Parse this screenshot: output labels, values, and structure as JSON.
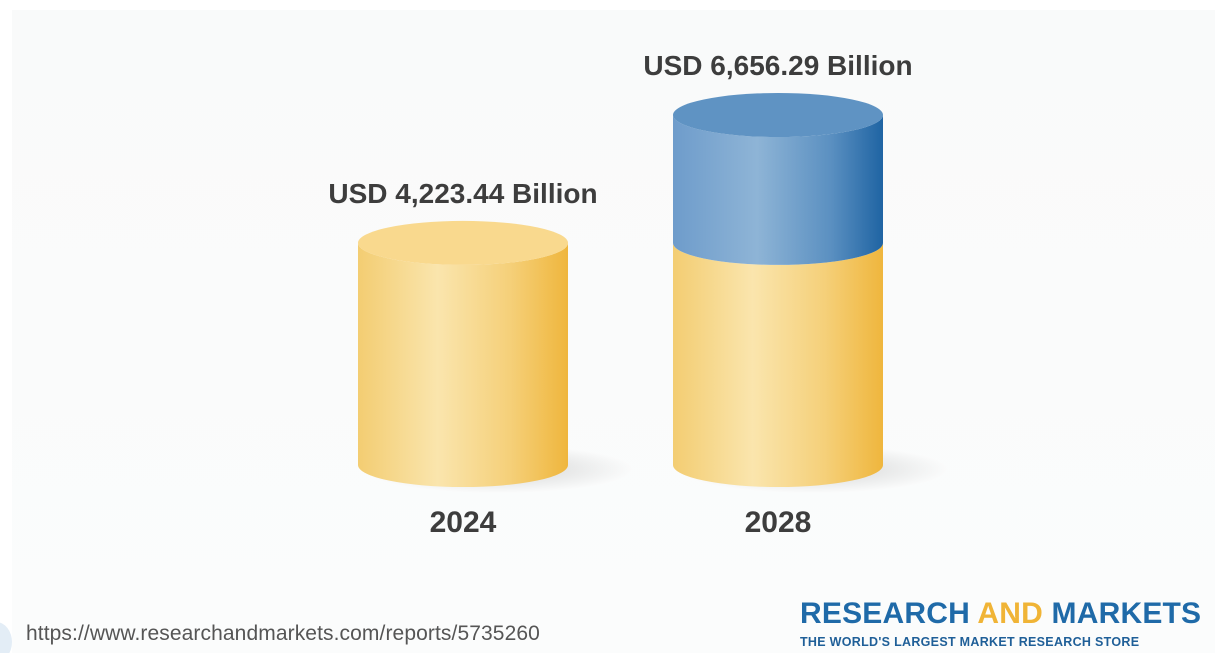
{
  "chart_data": {
    "type": "bar",
    "categories": [
      "2024",
      "2028"
    ],
    "values": [
      4223.44,
      6656.29
    ],
    "value_labels": [
      "USD 4,223.44 Billion",
      "USD 6,656.29 Billion"
    ],
    "title": "",
    "xlabel": "",
    "ylabel": "",
    "unit": "USD Billion",
    "grid": false,
    "legend": "none"
  },
  "colors": {
    "gold_light": "#fae5ad",
    "gold_mid": "#f6d27d",
    "gold_dark": "#efb63d",
    "gold_top": "#f9d98e",
    "blue_light": "#8eb4d6",
    "blue_mid": "#5b90c1",
    "blue_dark": "#1f64a3",
    "blue_top": "#5f93c3",
    "label_text": "#3d3d3d",
    "brand_blue": "#1f6aa8",
    "brand_gold": "#f0b436"
  },
  "source": {
    "url": "https://www.researchandmarkets.com/reports/5735260"
  },
  "brand": {
    "name_part1": "RESEARCH ",
    "name_part2": "AND",
    "name_part3": " MARKETS",
    "tagline": "THE WORLD'S LARGEST MARKET RESEARCH STORE"
  }
}
